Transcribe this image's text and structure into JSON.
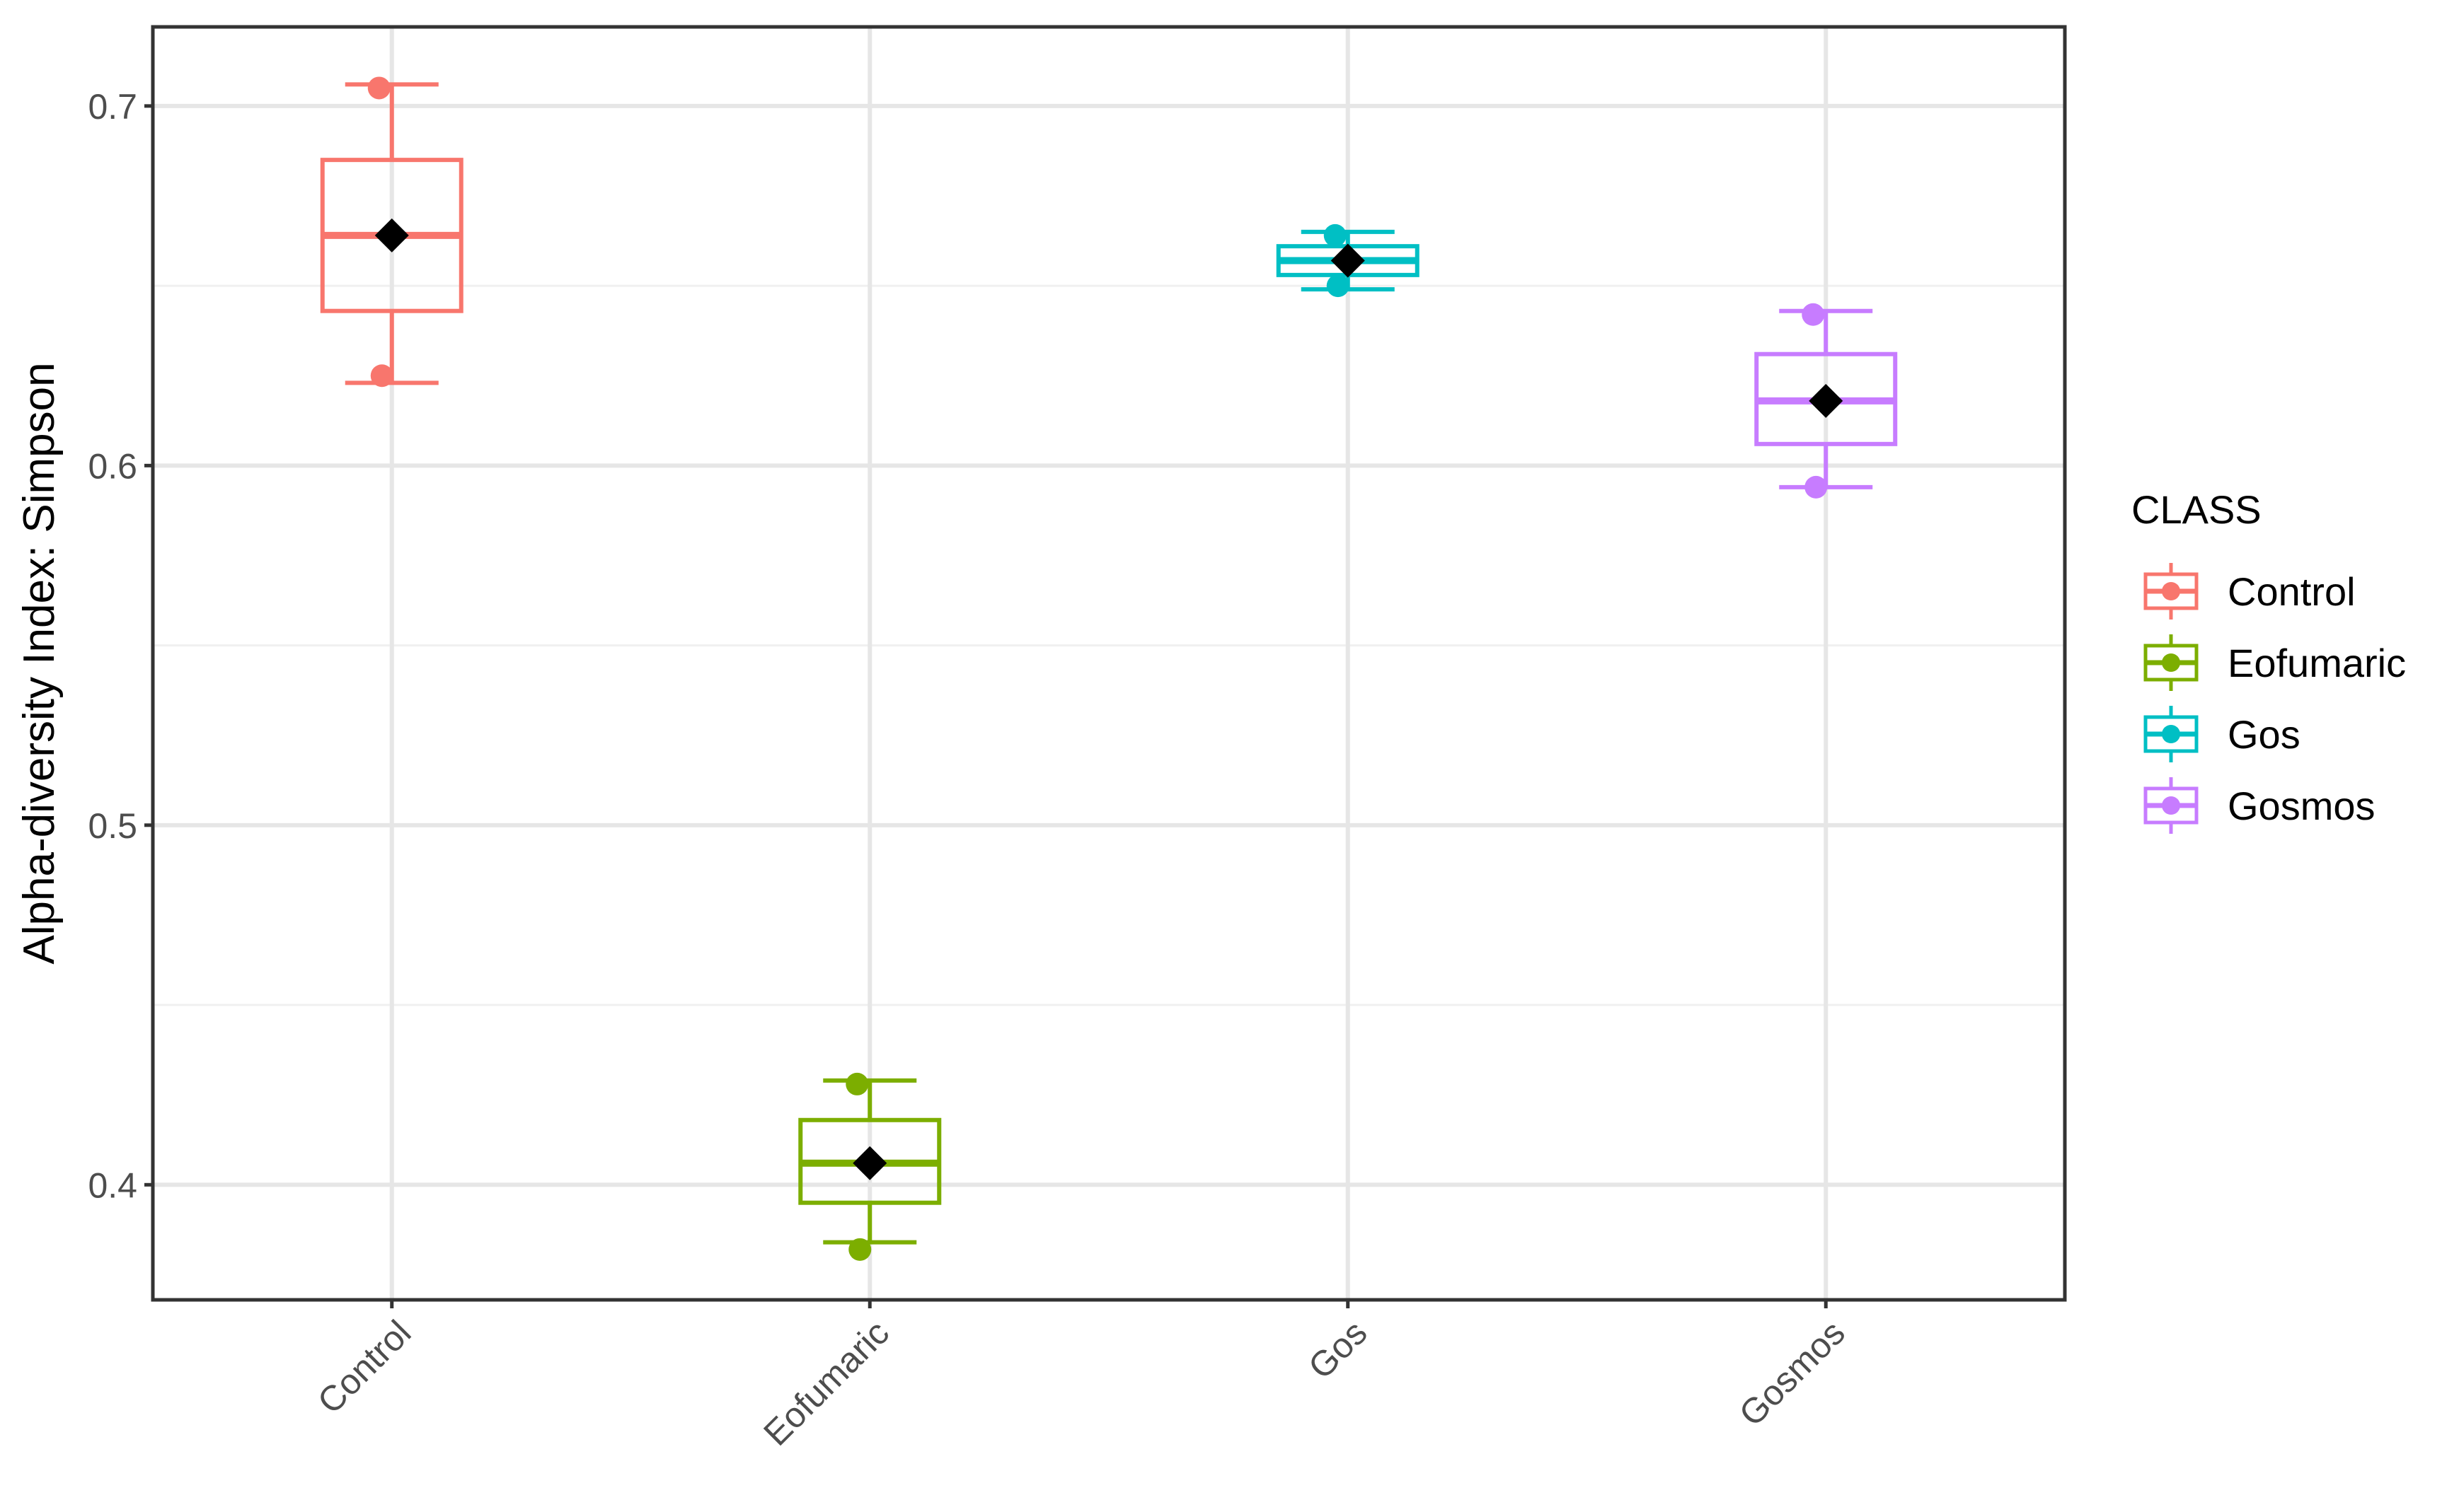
{
  "chart_data": {
    "type": "box",
    "ylabel": "Alpha-diversity Index: Simpson",
    "xlabel": "",
    "ylim": [
      0.368,
      0.722
    ],
    "y_ticks": [
      0.4,
      0.5,
      0.6,
      0.7
    ],
    "y_tick_labels": [
      "0.4",
      "0.5",
      "0.6",
      "0.7"
    ],
    "grid": true,
    "legend": {
      "title": "CLASS",
      "position": "right",
      "entries": [
        "Control",
        "Eofumaric",
        "Gos",
        "Gosmos"
      ]
    },
    "categories": [
      "Control",
      "Eofumaric",
      "Gos",
      "Gosmos"
    ],
    "boxes": [
      {
        "category": "Control",
        "color": "#F8766D",
        "whisker_low": 0.623,
        "q1": 0.643,
        "median": 0.664,
        "q3": 0.685,
        "whisker_high": 0.706,
        "mean": 0.664,
        "points": [
          0.705,
          0.625
        ]
      },
      {
        "category": "Eofumaric",
        "color": "#7CAE00",
        "whisker_low": 0.384,
        "q1": 0.395,
        "median": 0.406,
        "q3": 0.418,
        "whisker_high": 0.429,
        "mean": 0.406,
        "points": [
          0.428,
          0.382
        ]
      },
      {
        "category": "Gos",
        "color": "#00BFC4",
        "whisker_low": 0.649,
        "q1": 0.653,
        "median": 0.657,
        "q3": 0.661,
        "whisker_high": 0.665,
        "mean": 0.657,
        "points": [
          0.664,
          0.65
        ]
      },
      {
        "category": "Gosmos",
        "color": "#C77CFF",
        "whisker_low": 0.594,
        "q1": 0.606,
        "median": 0.618,
        "q3": 0.631,
        "whisker_high": 0.643,
        "mean": 0.618,
        "points": [
          0.642,
          0.594
        ]
      }
    ]
  }
}
